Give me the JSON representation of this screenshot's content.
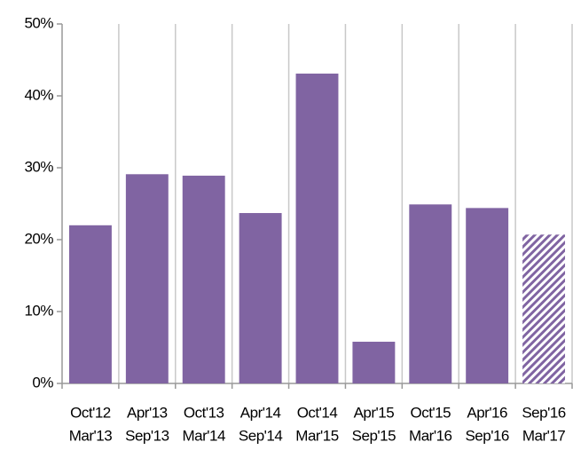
{
  "chart_data": {
    "type": "bar",
    "categories": [
      [
        "Oct'12",
        "Mar'13"
      ],
      [
        "Apr'13",
        "Sep'13"
      ],
      [
        "Oct'13",
        "Mar'14"
      ],
      [
        "Apr'14",
        "Sep'14"
      ],
      [
        "Oct'14",
        "Mar'15"
      ],
      [
        "Apr'15",
        "Sep'15"
      ],
      [
        "Oct'15",
        "Mar'16"
      ],
      [
        "Apr'16",
        "Sep'16"
      ],
      [
        "Sep'16",
        "Mar'17"
      ]
    ],
    "values": [
      22,
      29.1,
      28.9,
      23.7,
      43.1,
      5.8,
      24.9,
      24.4,
      20.7
    ],
    "hatch": [
      false,
      false,
      false,
      false,
      false,
      false,
      false,
      false,
      true
    ],
    "color": "#8064a2",
    "ylim": [
      0,
      50
    ],
    "yticks": [
      {
        "value": 0,
        "label": "0%"
      },
      {
        "value": 10,
        "label": "10%"
      },
      {
        "value": 20,
        "label": "20%"
      },
      {
        "value": 30,
        "label": "30%"
      },
      {
        "value": 40,
        "label": "40%"
      },
      {
        "value": 50,
        "label": "50%"
      }
    ],
    "grid": true
  }
}
